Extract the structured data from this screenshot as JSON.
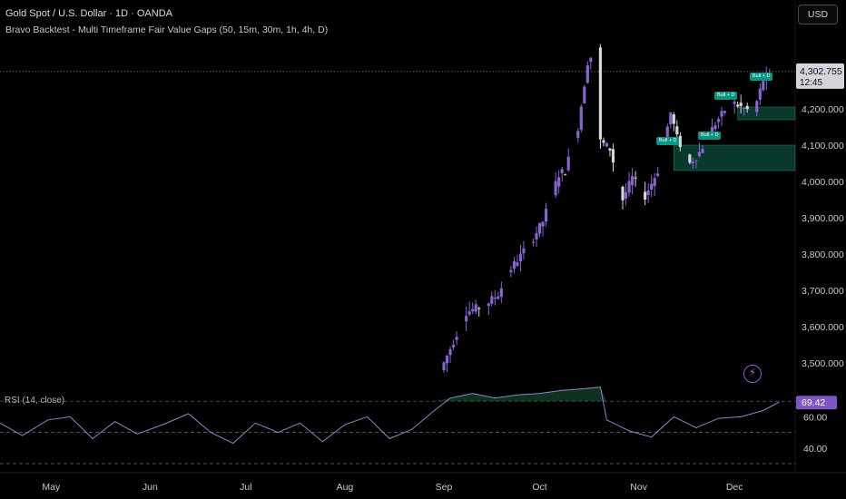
{
  "header": {
    "title": "Gold Spot / U.S. Dollar · 1D · OANDA",
    "indicator": "Bravo Backtest - Multi Timeframe Fair Value Gaps (50, 15m, 30m, 1h, 4h, D)",
    "currency": "USD"
  },
  "price_scale": {
    "last_price": "4,302.755",
    "countdown": "12:45",
    "ticks": [
      "4,200.000",
      "4,100.000",
      "4,000.000",
      "3,900.000",
      "3,800.000",
      "3,700.000",
      "3,600.000",
      "3,500.000"
    ]
  },
  "rsi": {
    "label": "RSI (14, close)",
    "value": "69.42",
    "ticks": [
      "60.00",
      "40.00"
    ]
  },
  "time_axis": [
    "May",
    "Jun",
    "Jul",
    "Aug",
    "Sep",
    "Oct",
    "Nov",
    "Dec"
  ],
  "fvg_tags": [
    "Bull + D",
    "Bull + D",
    "Bull + D",
    "Bull + D"
  ],
  "colors": {
    "background": "#000000",
    "bull_candle": "#8a63d2",
    "bear_candle": "#d8d8dc",
    "fvg_fill": "#0f4b3c",
    "tag": "#0a9582",
    "rsi_line": "#8f86c7"
  },
  "chart_data": {
    "type": "candlestick",
    "title": "Gold Spot / U.S. Dollar · 1D · OANDA",
    "y_range": [
      3450,
      4420
    ],
    "x_range": [
      "2025-04-15",
      "2025-12-20"
    ],
    "price_ticks": [
      4200,
      4100,
      4000,
      3900,
      3800,
      3700,
      3600,
      3500
    ],
    "last_price": 4302.755,
    "segments": [
      [
        "2025-09-01",
        3480
      ],
      [
        "2025-09-05",
        3560
      ],
      [
        "2025-09-09",
        3640
      ],
      [
        "2025-09-15",
        3660
      ],
      [
        "2025-09-19",
        3690
      ],
      [
        "2025-09-23",
        3760
      ],
      [
        "2025-09-29",
        3830
      ],
      [
        "2025-10-03",
        3890
      ],
      [
        "2025-10-08",
        4020
      ],
      [
        "2025-10-10",
        4030
      ],
      [
        "2025-10-14",
        4150
      ],
      [
        "2025-10-17",
        4330
      ],
      [
        "2025-10-20",
        4370
      ],
      [
        "2025-10-21",
        4110
      ],
      [
        "2025-10-24",
        4090
      ],
      [
        "2025-10-28",
        3950
      ],
      [
        "2025-10-31",
        4010
      ],
      [
        "2025-11-04",
        3960
      ],
      [
        "2025-11-08",
        4030
      ],
      [
        "2025-11-12",
        4190
      ],
      [
        "2025-11-14",
        4120
      ],
      [
        "2025-11-18",
        4050
      ],
      [
        "2025-11-21",
        4080
      ],
      [
        "2025-11-26",
        4160
      ],
      [
        "2025-12-01",
        4220
      ],
      [
        "2025-12-05",
        4200
      ],
      [
        "2025-12-08",
        4190
      ],
      [
        "2025-12-11",
        4280
      ],
      [
        "2025-12-15",
        4300
      ]
    ],
    "fair_value_gaps": [
      {
        "from": "2025-11-12",
        "to": "2025-12-20",
        "low": 4030,
        "high": 4100
      },
      {
        "from": "2025-12-02",
        "to": "2025-12-20",
        "low": 4170,
        "high": 4205
      }
    ],
    "rsi": {
      "range": [
        30,
        80
      ],
      "ticks": [
        60,
        40
      ],
      "guide_levels": [
        70,
        50,
        30
      ],
      "last": 69.42,
      "points": [
        [
          "2025-04-15",
          56
        ],
        [
          "2025-04-22",
          48
        ],
        [
          "2025-04-30",
          58
        ],
        [
          "2025-05-07",
          60
        ],
        [
          "2025-05-14",
          46
        ],
        [
          "2025-05-21",
          57
        ],
        [
          "2025-05-28",
          49
        ],
        [
          "2025-06-05",
          55
        ],
        [
          "2025-06-13",
          62
        ],
        [
          "2025-06-20",
          50
        ],
        [
          "2025-06-27",
          43
        ],
        [
          "2025-07-04",
          56
        ],
        [
          "2025-07-11",
          50
        ],
        [
          "2025-07-18",
          56
        ],
        [
          "2025-07-25",
          44
        ],
        [
          "2025-08-01",
          55
        ],
        [
          "2025-08-08",
          60
        ],
        [
          "2025-08-15",
          46
        ],
        [
          "2025-08-22",
          52
        ],
        [
          "2025-08-29",
          64
        ],
        [
          "2025-09-03",
          72
        ],
        [
          "2025-09-10",
          75
        ],
        [
          "2025-09-17",
          72
        ],
        [
          "2025-09-24",
          74
        ],
        [
          "2025-10-01",
          75
        ],
        [
          "2025-10-08",
          77
        ],
        [
          "2025-10-15",
          78
        ],
        [
          "2025-10-20",
          79
        ],
        [
          "2025-10-22",
          58
        ],
        [
          "2025-10-29",
          51
        ],
        [
          "2025-11-05",
          47
        ],
        [
          "2025-11-12",
          60
        ],
        [
          "2025-11-19",
          53
        ],
        [
          "2025-11-26",
          59
        ],
        [
          "2025-12-03",
          60
        ],
        [
          "2025-12-10",
          64
        ],
        [
          "2025-12-15",
          69.42
        ]
      ]
    }
  }
}
